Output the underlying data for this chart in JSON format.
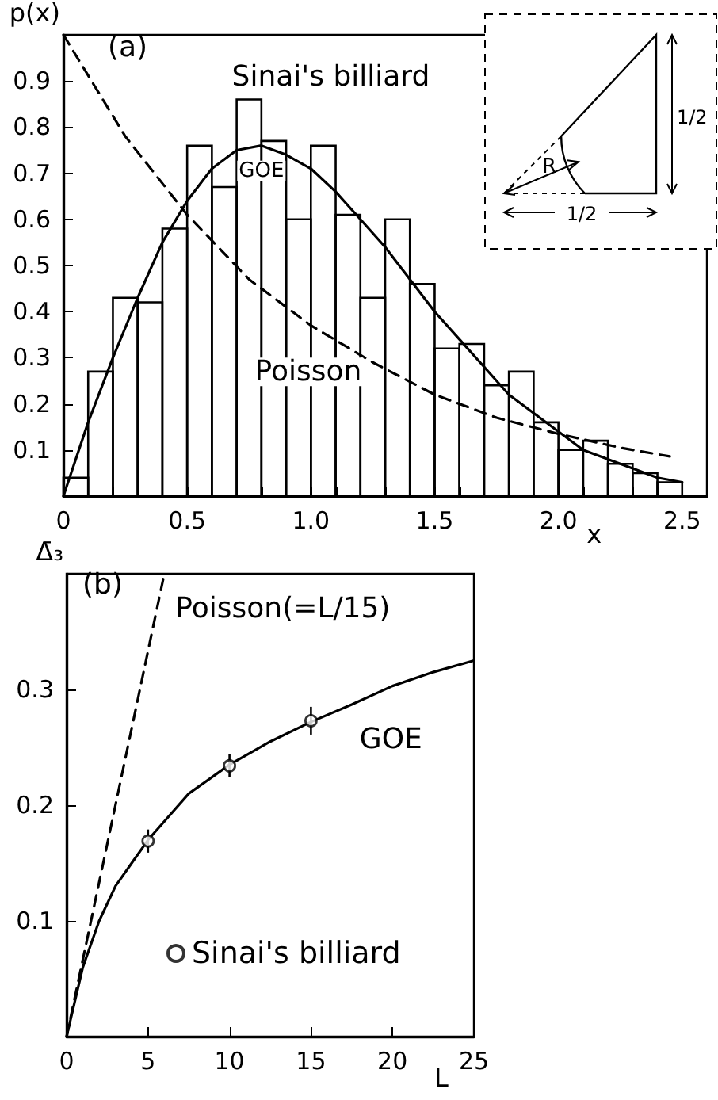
{
  "chart_data": [
    {
      "type": "histogram",
      "xlabel": "x",
      "ylabel": "p(x)",
      "annotations": [
        "(a)",
        "R",
        "1/2",
        "1/2"
      ],
      "xlim": [
        0,
        2.6
      ],
      "ylim": [
        0,
        1
      ],
      "xticks": [
        0,
        {
          "value": 0.1,
          "label": null
        },
        {
          "value": 0.2,
          "label": null
        },
        {
          "value": 0.3,
          "label": null
        },
        {
          "value": 0.4,
          "label": null
        },
        0.5,
        {
          "value": 0.6,
          "label": null
        },
        {
          "value": 0.7,
          "label": null
        },
        {
          "value": 0.8,
          "label": null
        },
        {
          "value": 0.9,
          "label": null
        },
        {
          "value": 1,
          "label": "1.0"
        },
        {
          "value": 1.1,
          "label": null
        },
        {
          "value": 1.2,
          "label": null
        },
        {
          "value": 1.3,
          "label": null
        },
        {
          "value": 1.4,
          "label": null
        },
        1.5,
        {
          "value": 1.6,
          "label": null
        },
        {
          "value": 1.7,
          "label": null
        },
        {
          "value": 1.8,
          "label": null
        },
        {
          "value": 1.9,
          "label": null
        },
        {
          "value": 2,
          "label": "2.0"
        },
        {
          "value": 2.1,
          "label": null
        },
        {
          "value": 2.2,
          "label": null
        },
        {
          "value": 2.3,
          "label": null
        },
        {
          "value": 2.4,
          "label": null
        },
        2.5
      ],
      "yticks": [
        0.1,
        0.2,
        0.3,
        0.4,
        0.5,
        0.6,
        0.7,
        0.8,
        0.9
      ],
      "grid": false,
      "series": [
        {
          "name": "Sinai's billiard",
          "color": "#000000",
          "bins": [
            0,
            0.1,
            0.2,
            0.3,
            0.4,
            0.5,
            0.6,
            0.7,
            0.8,
            0.9,
            1,
            1.1,
            1.2,
            1.3,
            1.4,
            1.5,
            1.6,
            1.7,
            1.8,
            1.9,
            2,
            2.1,
            2.2,
            2.3,
            2.4,
            2.5
          ],
          "values": [
            0.04,
            0.27,
            0.43,
            0.42,
            0.58,
            0.76,
            0.67,
            0.86,
            0.77,
            0.6,
            0.76,
            0.61,
            0.43,
            0.6,
            0.46,
            0.32,
            0.33,
            0.24,
            0.27,
            0.16,
            0.1,
            0.12,
            0.07,
            0.05,
            0.03
          ]
        },
        {
          "type": "line",
          "name": "GOE",
          "color": "#000000",
          "line_style": "solid",
          "x": [
            0,
            0.1,
            0.2,
            0.3,
            0.4,
            0.5,
            0.6,
            0.7,
            0.8,
            0.9,
            1,
            1.1,
            1.2,
            1.3,
            1.4,
            1.5,
            1.6,
            1.7,
            1.8,
            1.9,
            2,
            2.1,
            2.2,
            2.3,
            2.4,
            2.5
          ],
          "values": [
            0,
            0.16,
            0.3,
            0.43,
            0.55,
            0.64,
            0.71,
            0.75,
            0.76,
            0.74,
            0.71,
            0.66,
            0.6,
            0.54,
            0.47,
            0.4,
            0.34,
            0.28,
            0.22,
            0.18,
            0.14,
            0.1,
            0.08,
            0.06,
            0.04,
            0.03
          ]
        },
        {
          "type": "line",
          "name": "Poisson",
          "color": "#000000",
          "line_style": "dashed",
          "x": [
            0,
            0.25,
            0.5,
            0.75,
            1,
            1.25,
            1.5,
            1.75,
            2,
            2.25,
            2.45
          ],
          "values": [
            1,
            0.78,
            0.61,
            0.47,
            0.37,
            0.29,
            0.22,
            0.17,
            0.135,
            0.105,
            0.086
          ]
        }
      ]
    },
    {
      "type": "line",
      "xlabel": "L",
      "ylabel": "Δ̄₃",
      "annotations": [
        "(b)"
      ],
      "xlim": [
        0,
        25
      ],
      "ylim": [
        0,
        0.4
      ],
      "xticks": [
        0,
        5,
        10,
        15,
        20,
        25
      ],
      "yticks": [
        0.1,
        0.2,
        0.3
      ],
      "grid": false,
      "legend": "bottom",
      "series": [
        {
          "name": "Poisson(=L/15)",
          "color": "#000000",
          "line_style": "dashed",
          "x": [
            0,
            6
          ],
          "values": [
            0,
            0.4
          ]
        },
        {
          "name": "GOE",
          "color": "#000000",
          "line_style": "solid",
          "x": [
            0,
            0.5,
            1,
            2,
            3,
            4,
            5,
            7.5,
            10,
            12.5,
            15,
            17.5,
            20,
            22.5,
            25
          ],
          "values": [
            0,
            0.03,
            0.06,
            0.1,
            0.13,
            0.15,
            0.17,
            0.21,
            0.235,
            0.255,
            0.272,
            0.287,
            0.303,
            0.315,
            0.325
          ]
        },
        {
          "type": "scatter",
          "name": "Sinai's billiard",
          "color": "#000000",
          "marker": "circle",
          "x": [
            5,
            10,
            15
          ],
          "values": [
            0.169,
            0.234,
            0.273
          ],
          "errors": [
            0.01,
            0.01,
            0.012
          ]
        }
      ]
    }
  ]
}
